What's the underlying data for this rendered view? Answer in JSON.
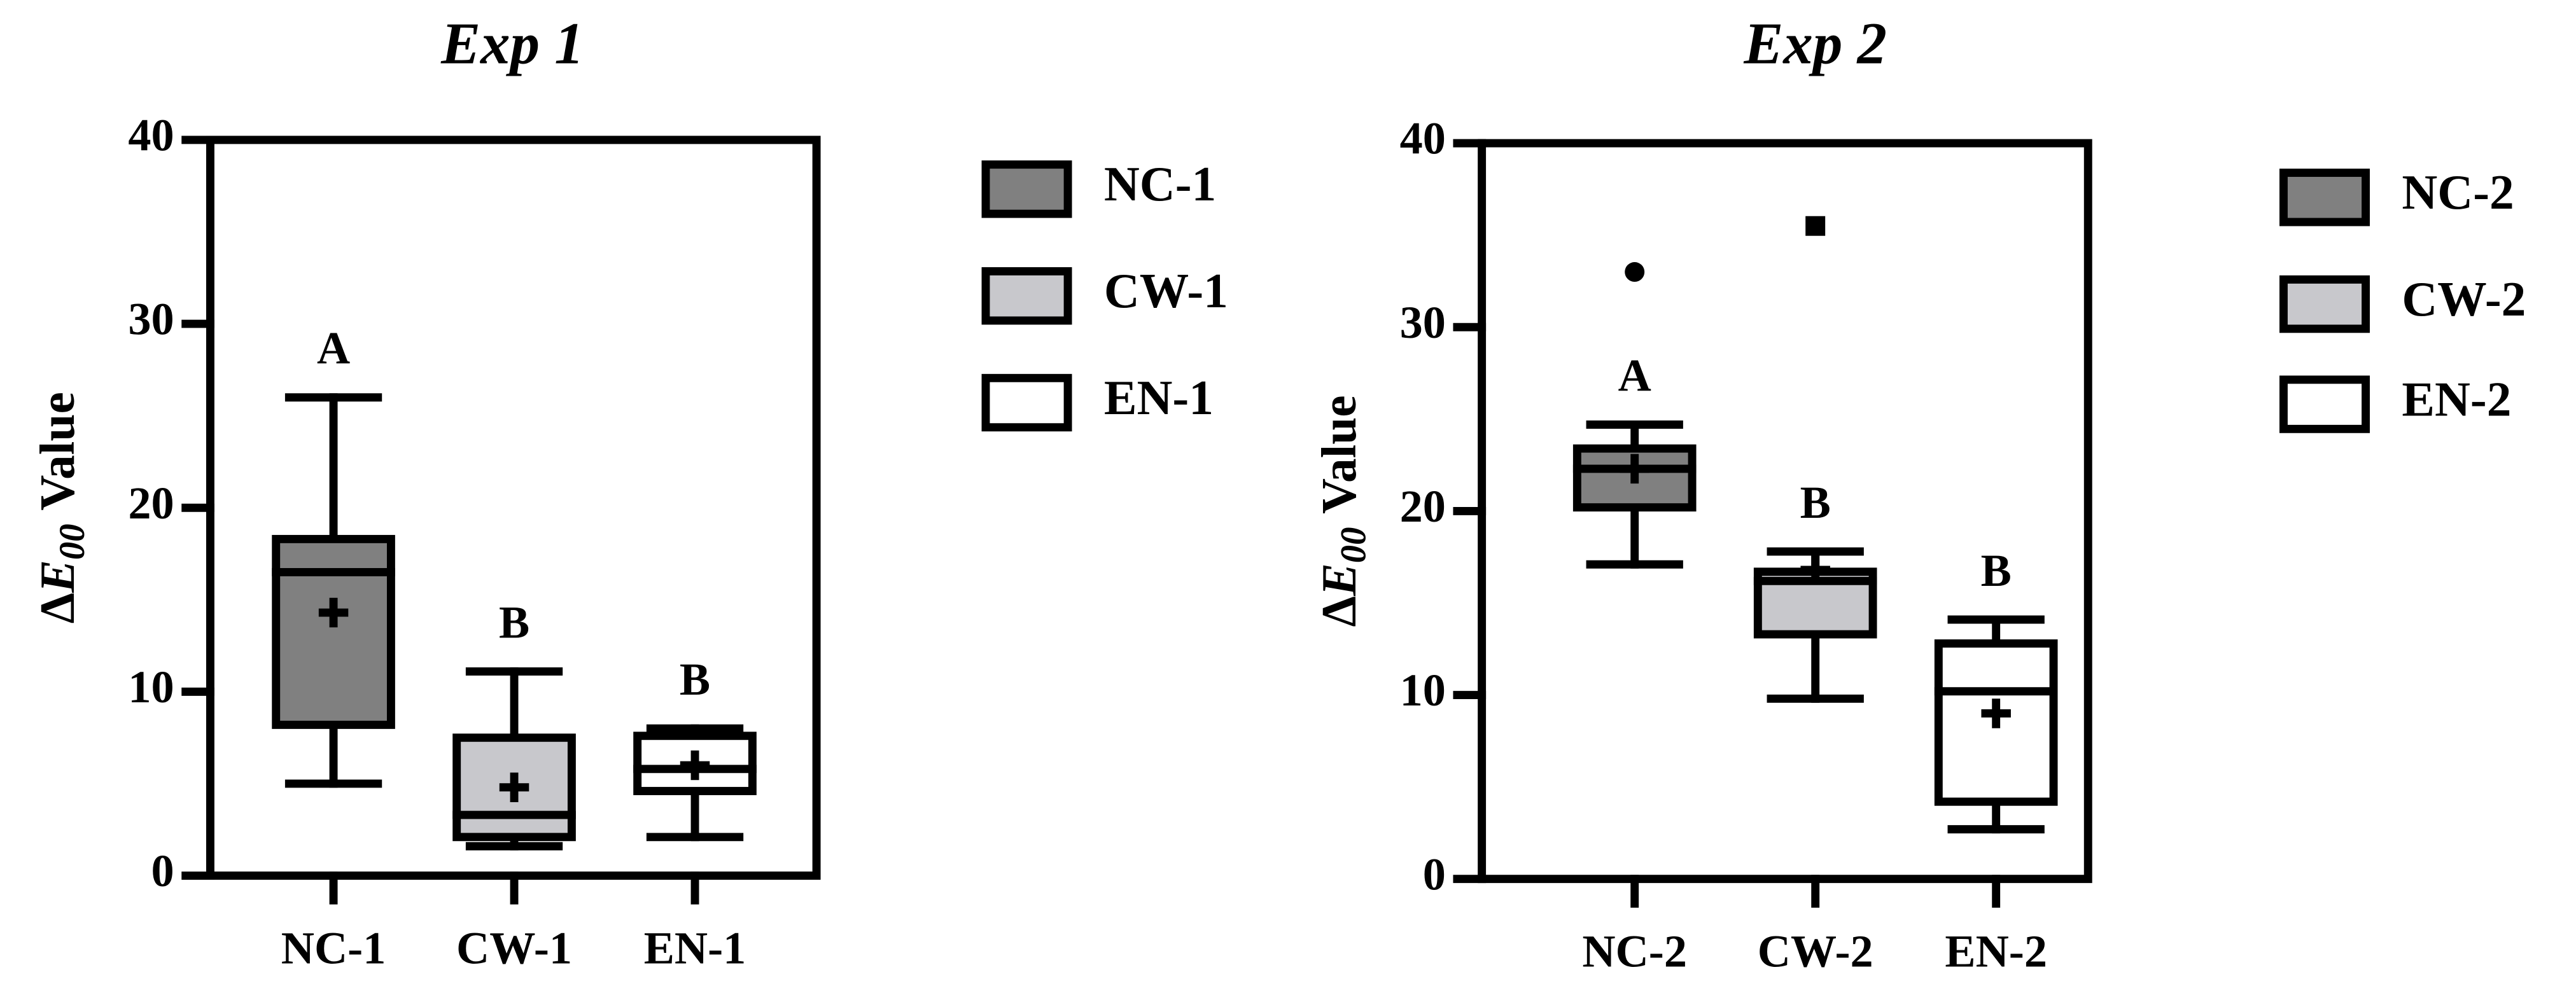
{
  "chart_data": [
    {
      "type": "box",
      "title": "Exp 1",
      "ylabel": [
        "Δ",
        "E",
        "00",
        "Value"
      ],
      "categories": [
        "NC-1",
        "CW-1",
        "EN-1"
      ],
      "ylim": [
        0,
        40
      ],
      "yticks": [
        0,
        10,
        20,
        30,
        40
      ],
      "series": [
        {
          "name": "NC-1",
          "color": "#808080",
          "whislo": 5,
          "q1": 8.2,
          "median": 16.5,
          "q3": 18.3,
          "whishi": 26,
          "mean": 14.3,
          "letter": "A"
        },
        {
          "name": "CW-1",
          "color": "#c8c8cc",
          "whislo": 1.6,
          "q1": 2.1,
          "median": 3.3,
          "q3": 7.5,
          "whishi": 11.1,
          "mean": 4.8,
          "letter": "B"
        },
        {
          "name": "EN-1",
          "color": "#ffffff",
          "whislo": 2.1,
          "q1": 4.6,
          "median": 5.8,
          "q3": 7.6,
          "whishi": 8,
          "mean": 6,
          "letter": "B"
        }
      ]
    },
    {
      "type": "box",
      "title": "Exp 2",
      "ylabel": [
        "Δ",
        "E",
        "00",
        "Value"
      ],
      "categories": [
        "NC-2",
        "CW-2",
        "EN-2"
      ],
      "ylim": [
        0,
        40
      ],
      "yticks": [
        0,
        10,
        20,
        30,
        40
      ],
      "series": [
        {
          "name": "NC-2",
          "color": "#808080",
          "whislo": 17.1,
          "q1": 20.2,
          "median": 22.3,
          "q3": 23.4,
          "whishi": 24.7,
          "mean": 22.3,
          "letter": "A",
          "outliers": [
            33
          ],
          "outlier_marker": "circle"
        },
        {
          "name": "CW-2",
          "color": "#c8c8cc",
          "whislo": 9.8,
          "q1": 13.3,
          "median": 16.2,
          "q3": 16.7,
          "whishi": 17.8,
          "mean": 16.8,
          "letter": "B",
          "outliers": [
            35.5
          ],
          "outlier_marker": "square"
        },
        {
          "name": "EN-2",
          "color": "#ffffff",
          "whislo": 2.7,
          "q1": 4.2,
          "median": 10.2,
          "q3": 12.8,
          "whishi": 14.1,
          "mean": 9,
          "letter": "B"
        }
      ]
    }
  ]
}
